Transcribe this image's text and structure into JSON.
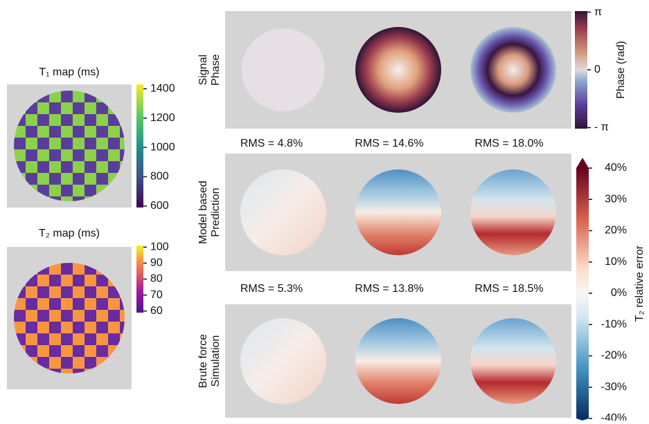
{
  "t1_map": {
    "title": "T₁ map (ms)",
    "colorbar": {
      "lim": [
        590,
        1430
      ],
      "ticks": [
        600,
        800,
        1000,
        1200,
        1400
      ]
    }
  },
  "t2_map": {
    "title": "T₂ map (ms)",
    "colorbar": {
      "lim": [
        59,
        101
      ],
      "ticks": [
        60,
        70,
        80,
        90,
        100
      ]
    }
  },
  "phase": {
    "label": "Phase (rad)",
    "colorbar": {
      "lim": [
        -3.2,
        3.2
      ],
      "ticks": [
        {
          "value": -3.14159,
          "label": "- π"
        },
        {
          "value": 0,
          "label": "0"
        },
        {
          "value": 3.14159,
          "label": "π"
        }
      ]
    }
  },
  "error": {
    "label": "T₂ relative error",
    "colorbar": {
      "lim": [
        -40,
        40
      ],
      "ticks": [
        {
          "value": -40,
          "label": "-40%"
        },
        {
          "value": -30,
          "label": "-30%"
        },
        {
          "value": -20,
          "label": "-20%"
        },
        {
          "value": -10,
          "label": "-10%"
        },
        {
          "value": 0,
          "label": "0%"
        },
        {
          "value": 10,
          "label": "10%"
        },
        {
          "value": 20,
          "label": "20%"
        },
        {
          "value": 30,
          "label": "30%"
        },
        {
          "value": 40,
          "label": "40%"
        }
      ]
    }
  },
  "rows": [
    {
      "label": [
        "Signal",
        "Phase"
      ]
    },
    {
      "label": [
        "Model based",
        "Prediction"
      ],
      "rms": [
        "RMS = 4.8%",
        "RMS = 14.6%",
        "RMS = 18.0%"
      ]
    },
    {
      "label": [
        "Brute force",
        "Simulation"
      ],
      "rms": [
        "RMS = 5.3%",
        "RMS = 13.8%",
        "RMS = 18.5%"
      ]
    }
  ]
}
